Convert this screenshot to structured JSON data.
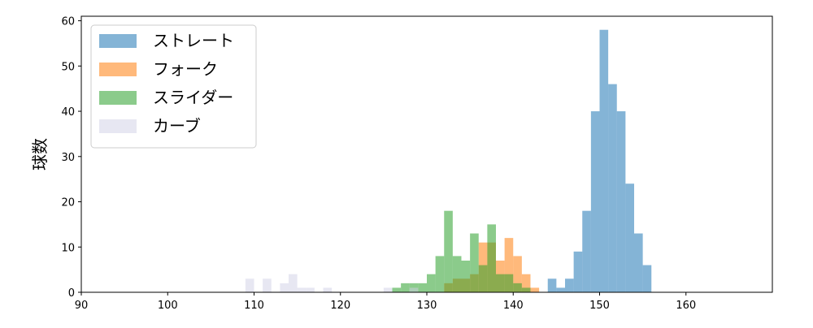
{
  "chart_data": {
    "type": "histogram",
    "title": "",
    "xlabel": "",
    "ylabel": "球数",
    "xlim": [
      90,
      170
    ],
    "ylim": [
      0,
      61
    ],
    "xticks": [
      90,
      100,
      110,
      120,
      130,
      140,
      150,
      160
    ],
    "yticks": [
      0,
      10,
      20,
      30,
      40,
      50,
      60
    ],
    "grid": false,
    "legend_position": "top-left",
    "bin_width": 1,
    "series": [
      {
        "name": "ストレート",
        "color": "#1f77b4",
        "bin_starts": [
          144,
          145,
          146,
          147,
          148,
          149,
          150,
          151,
          152,
          153,
          154,
          155
        ],
        "counts": [
          3,
          1,
          3,
          9,
          18,
          40,
          58,
          46,
          40,
          24,
          13,
          6
        ]
      },
      {
        "name": "フォーク",
        "color": "#ff7f0e",
        "bin_starts": [
          132,
          133,
          134,
          135,
          136,
          137,
          138,
          139,
          140,
          141,
          142
        ],
        "counts": [
          2,
          3,
          3,
          4,
          11,
          11,
          7,
          12,
          8,
          4,
          1
        ]
      },
      {
        "name": "スライダー",
        "color": "#2ca02c",
        "bin_starts": [
          126,
          127,
          128,
          129,
          130,
          131,
          132,
          133,
          134,
          135,
          136,
          137,
          138,
          139,
          140,
          141
        ],
        "counts": [
          1,
          2,
          2,
          2,
          4,
          8,
          18,
          8,
          7,
          13,
          6,
          15,
          4,
          4,
          2,
          1
        ]
      },
      {
        "name": "カーブ",
        "color": "#d0d0e6",
        "bin_starts": [
          109,
          111,
          113,
          114,
          115,
          116,
          118,
          125,
          128
        ],
        "counts": [
          3,
          3,
          2,
          4,
          1,
          1,
          1,
          1,
          1
        ]
      }
    ]
  }
}
